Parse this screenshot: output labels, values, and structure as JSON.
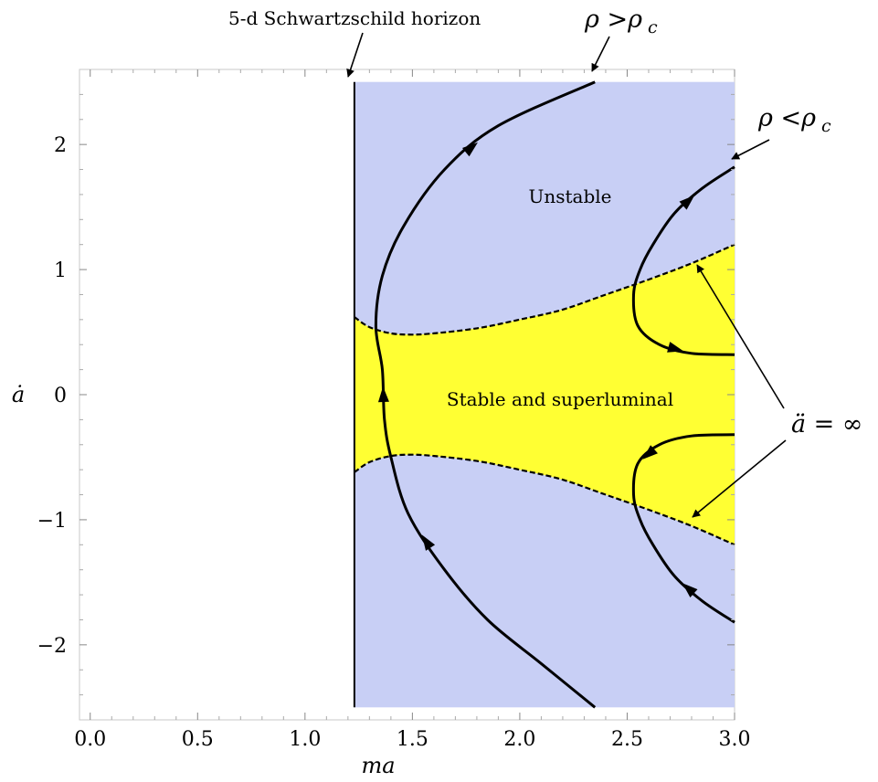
{
  "chart_data": {
    "type": "line",
    "xlabel": "ma",
    "ylabel": "ȧ",
    "xlim": [
      -0.05,
      3.0
    ],
    "ylim": [
      -2.6,
      2.6
    ],
    "x_ticks": [
      {
        "v": 0.0,
        "label": "0.0"
      },
      {
        "v": 0.5,
        "label": "0.5"
      },
      {
        "v": 1.0,
        "label": "1.0"
      },
      {
        "v": 1.5,
        "label": "1.5"
      },
      {
        "v": 2.0,
        "label": "2.0"
      },
      {
        "v": 2.5,
        "label": "2.5"
      },
      {
        "v": 3.0,
        "label": "3.0"
      }
    ],
    "y_ticks": [
      {
        "v": -2,
        "label": "−2"
      },
      {
        "v": -1,
        "label": "−1"
      },
      {
        "v": 0,
        "label": "0"
      },
      {
        "v": 1,
        "label": "1"
      },
      {
        "v": 2,
        "label": "2"
      }
    ],
    "regions": {
      "unstable": {
        "label": "Unstable",
        "color": "#c8cff5",
        "x_range": [
          1.23,
          3.0
        ],
        "y_range": [
          -2.5,
          2.5
        ]
      },
      "stable": {
        "label": "Stable and superluminal",
        "color": "#ffff33"
      }
    },
    "horizon_x": 1.23,
    "boundary_upper": [
      [
        1.23,
        0.62
      ],
      [
        1.3,
        0.54
      ],
      [
        1.4,
        0.49
      ],
      [
        1.5,
        0.48
      ],
      [
        1.6,
        0.49
      ],
      [
        1.8,
        0.53
      ],
      [
        2.0,
        0.6
      ],
      [
        2.2,
        0.68
      ],
      [
        2.4,
        0.8
      ],
      [
        2.6,
        0.92
      ],
      [
        2.8,
        1.05
      ],
      [
        3.0,
        1.2
      ]
    ],
    "boundary_lower": [
      [
        1.23,
        -0.62
      ],
      [
        1.3,
        -0.54
      ],
      [
        1.4,
        -0.49
      ],
      [
        1.5,
        -0.48
      ],
      [
        1.6,
        -0.49
      ],
      [
        1.8,
        -0.53
      ],
      [
        2.0,
        -0.6
      ],
      [
        2.2,
        -0.68
      ],
      [
        2.4,
        -0.8
      ],
      [
        2.6,
        -0.92
      ],
      [
        2.8,
        -1.05
      ],
      [
        3.0,
        -1.2
      ]
    ],
    "series": [
      {
        "points": [
          [
            2.35,
            -2.5
          ],
          [
            2.1,
            -2.15
          ],
          [
            1.85,
            -1.8
          ],
          [
            1.65,
            -1.4
          ],
          [
            1.48,
            -0.95
          ],
          [
            1.4,
            -0.5
          ],
          [
            1.37,
            -0.2
          ],
          [
            1.36,
            0.2
          ],
          [
            1.33,
            0.55
          ],
          [
            1.36,
            0.95
          ],
          [
            1.46,
            1.35
          ],
          [
            1.65,
            1.8
          ],
          [
            1.9,
            2.15
          ],
          [
            2.35,
            2.5
          ]
        ],
        "arrows": [
          {
            "at": 3,
            "dir": 1
          },
          {
            "at": 6,
            "dir": 1
          },
          {
            "at": 11,
            "dir": 1
          }
        ]
      },
      {
        "points": [
          [
            3.0,
            0.32
          ],
          [
            2.8,
            0.33
          ],
          [
            2.65,
            0.4
          ],
          [
            2.55,
            0.55
          ],
          [
            2.53,
            0.8
          ],
          [
            2.56,
            1.0
          ],
          [
            2.62,
            1.2
          ],
          [
            2.72,
            1.45
          ],
          [
            2.85,
            1.65
          ],
          [
            3.0,
            1.82
          ]
        ],
        "arrows": [
          {
            "at": 1,
            "dir": -1
          },
          {
            "at": 7,
            "dir": 1
          }
        ]
      },
      {
        "points": [
          [
            3.0,
            -0.32
          ],
          [
            2.8,
            -0.33
          ],
          [
            2.65,
            -0.4
          ],
          [
            2.55,
            -0.55
          ],
          [
            2.53,
            -0.8
          ],
          [
            2.56,
            -1.0
          ],
          [
            2.62,
            -1.2
          ],
          [
            2.72,
            -1.45
          ],
          [
            2.85,
            -1.65
          ],
          [
            3.0,
            -1.82
          ]
        ],
        "arrows": [
          {
            "at": 2,
            "dir": 1
          },
          {
            "at": 7,
            "dir": -1
          }
        ]
      }
    ],
    "annotations": {
      "horizon": "5-d Schwartzschild horizon",
      "rho_gt_main": "ρ >ρ",
      "rho_gt_sub": "c",
      "rho_lt_main": "ρ <ρ",
      "rho_lt_sub": "c",
      "addot": "ä = ∞"
    }
  }
}
